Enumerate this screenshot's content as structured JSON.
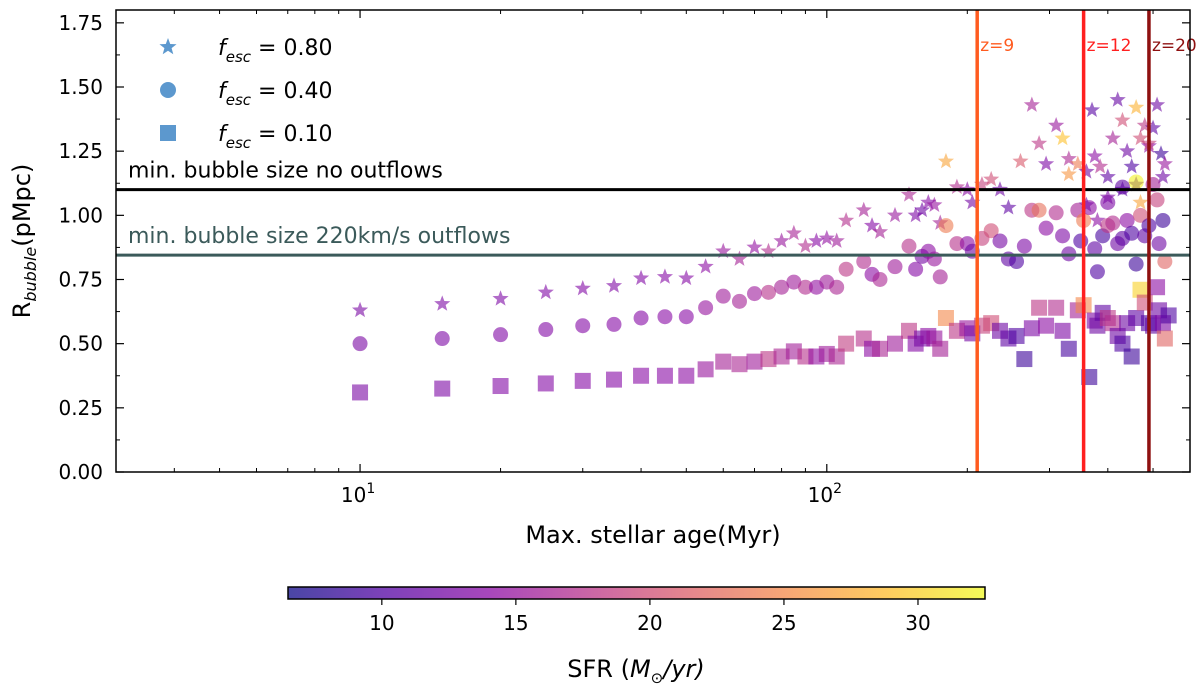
{
  "chart_data": {
    "type": "scatter",
    "xscale": "log",
    "xlim": [
      3.0,
      600.0
    ],
    "ylim": [
      0.0,
      1.8
    ],
    "xlabel": "Max. stellar age(Myr)",
    "ylabel": "R_bubble(pMpc)",
    "ylabel_base": "R",
    "ylabel_sub": "bubble",
    "ylabel_tail": "(pMpc)",
    "x_ticks": [
      {
        "value": 10,
        "base": "10",
        "exp": "1"
      },
      {
        "value": 100,
        "base": "10",
        "exp": "2"
      }
    ],
    "y_ticks": [
      {
        "value": 0.0,
        "label": "0.00"
      },
      {
        "value": 0.25,
        "label": "0.25"
      },
      {
        "value": 0.5,
        "label": "0.50"
      },
      {
        "value": 0.75,
        "label": "0.75"
      },
      {
        "value": 1.0,
        "label": "1.00"
      },
      {
        "value": 1.25,
        "label": "1.25"
      },
      {
        "value": 1.5,
        "label": "1.50"
      },
      {
        "value": 1.75,
        "label": "1.75"
      }
    ],
    "legend": [
      {
        "marker": "star",
        "prefix": "f",
        "sub": "esc",
        "value_text": " = 0.80"
      },
      {
        "marker": "circle",
        "prefix": "f",
        "sub": "esc",
        "value_text": " = 0.40"
      },
      {
        "marker": "square",
        "prefix": "f",
        "sub": "esc",
        "value_text": " = 0.10"
      }
    ],
    "legend_position": "top-left",
    "legend_color": "#3f86c6",
    "hlines": [
      {
        "y": 1.1,
        "color": "#000000",
        "label": "min. bubble size no outflows"
      },
      {
        "y": 0.845,
        "color": "#3b5a5a",
        "label": "min. bubble size 220km/s outflows"
      }
    ],
    "vlines": [
      {
        "x": 210,
        "color": "#ff5b1f",
        "label": "z=9"
      },
      {
        "x": 355,
        "color": "#ff2020",
        "label": "z=12"
      },
      {
        "x": 490,
        "color": "#8e1010",
        "label": "z=20"
      }
    ],
    "colorbar": {
      "label_prefix": "SFR (",
      "label_unit": "M",
      "label_sub": "⊙",
      "label_suffix": "/yr)",
      "min": 6.5,
      "max": 32.5,
      "ticks": [
        {
          "value": 10,
          "label": "10"
        },
        {
          "value": 15,
          "label": "15"
        },
        {
          "value": 20,
          "label": "20"
        },
        {
          "value": 25,
          "label": "25"
        },
        {
          "value": 30,
          "label": "30"
        }
      ]
    },
    "series": [
      {
        "name": "f_esc = 0.80",
        "marker": "star",
        "points": [
          [
            10,
            0.63,
            12.8
          ],
          [
            15,
            0.655,
            13
          ],
          [
            20,
            0.675,
            13
          ],
          [
            25,
            0.7,
            13.2
          ],
          [
            30,
            0.715,
            13.3
          ],
          [
            35,
            0.725,
            13.2
          ],
          [
            40,
            0.755,
            13.3
          ],
          [
            45,
            0.76,
            13.5
          ],
          [
            50,
            0.755,
            13.6
          ],
          [
            55,
            0.8,
            14
          ],
          [
            60,
            0.86,
            15
          ],
          [
            65,
            0.83,
            16
          ],
          [
            70,
            0.875,
            14.5
          ],
          [
            75,
            0.86,
            17
          ],
          [
            80,
            0.9,
            15
          ],
          [
            85,
            0.93,
            16.2
          ],
          [
            90,
            0.88,
            17
          ],
          [
            95,
            0.9,
            13.8
          ],
          [
            100,
            0.91,
            14.5
          ],
          [
            105,
            0.9,
            15.5
          ],
          [
            110,
            0.98,
            17.2
          ],
          [
            120,
            1.02,
            16
          ],
          [
            125,
            0.96,
            13.5
          ],
          [
            130,
            0.935,
            16
          ],
          [
            140,
            1.0,
            15
          ],
          [
            150,
            1.08,
            16.5
          ],
          [
            155,
            1.0,
            13
          ],
          [
            160,
            1.02,
            12
          ],
          [
            165,
            1.05,
            13.5
          ],
          [
            170,
            1.04,
            14.8
          ],
          [
            175,
            0.97,
            16
          ],
          [
            180,
            1.21,
            27
          ],
          [
            190,
            1.11,
            17
          ],
          [
            200,
            1.1,
            14
          ],
          [
            205,
            1.05,
            12.5
          ],
          [
            215,
            1.12,
            19
          ],
          [
            225,
            1.14,
            20
          ],
          [
            235,
            1.1,
            12
          ],
          [
            245,
            1.03,
            11
          ],
          [
            260,
            1.21,
            21
          ],
          [
            275,
            1.43,
            16
          ],
          [
            285,
            1.28,
            18
          ],
          [
            295,
            1.2,
            13
          ],
          [
            310,
            1.35,
            15
          ],
          [
            320,
            1.3,
            29
          ],
          [
            330,
            1.22,
            16.5
          ],
          [
            345,
            1.2,
            24
          ],
          [
            360,
            1.17,
            12
          ],
          [
            370,
            1.41,
            10.5
          ],
          [
            375,
            1.23,
            14
          ],
          [
            385,
            1.19,
            17
          ],
          [
            400,
            1.15,
            11
          ],
          [
            410,
            1.3,
            16
          ],
          [
            420,
            1.45,
            11.5
          ],
          [
            430,
            1.37,
            20
          ],
          [
            440,
            1.25,
            12
          ],
          [
            450,
            1.19,
            10
          ],
          [
            460,
            1.42,
            28
          ],
          [
            470,
            1.3,
            20
          ],
          [
            480,
            1.35,
            18
          ],
          [
            490,
            1.27,
            14
          ],
          [
            500,
            1.34,
            11
          ],
          [
            510,
            1.43,
            12
          ],
          [
            520,
            1.24,
            9
          ],
          [
            525,
            1.15,
            12
          ],
          [
            530,
            1.2,
            15
          ],
          [
            400,
            1.07,
            13
          ],
          [
            430,
            1.1,
            11
          ],
          [
            460,
            1.12,
            10
          ],
          [
            470,
            1.05,
            27
          ],
          [
            490,
            1.28,
            19
          ],
          [
            380,
            0.98,
            14
          ],
          [
            360,
            1.04,
            12
          ],
          [
            330,
            1.16,
            26
          ]
        ]
      },
      {
        "name": "f_esc = 0.40",
        "marker": "circle",
        "points": [
          [
            10,
            0.5,
            12.8
          ],
          [
            15,
            0.52,
            13
          ],
          [
            20,
            0.535,
            13.2
          ],
          [
            25,
            0.555,
            13.3
          ],
          [
            30,
            0.57,
            13.4
          ],
          [
            35,
            0.575,
            13.5
          ],
          [
            40,
            0.6,
            13.6
          ],
          [
            45,
            0.605,
            13.7
          ],
          [
            50,
            0.605,
            13.8
          ],
          [
            55,
            0.64,
            14.8
          ],
          [
            60,
            0.685,
            15.5
          ],
          [
            65,
            0.665,
            16
          ],
          [
            70,
            0.695,
            15.3
          ],
          [
            75,
            0.7,
            17.5
          ],
          [
            80,
            0.72,
            16
          ],
          [
            85,
            0.74,
            15.5
          ],
          [
            90,
            0.72,
            17
          ],
          [
            95,
            0.72,
            14.5
          ],
          [
            100,
            0.74,
            15.5
          ],
          [
            105,
            0.72,
            16.5
          ],
          [
            110,
            0.79,
            18
          ],
          [
            120,
            0.82,
            17
          ],
          [
            125,
            0.77,
            14
          ],
          [
            130,
            0.75,
            16.5
          ],
          [
            140,
            0.8,
            15.5
          ],
          [
            150,
            0.88,
            17.5
          ],
          [
            155,
            0.79,
            13.5
          ],
          [
            160,
            0.84,
            12.5
          ],
          [
            165,
            0.86,
            14
          ],
          [
            170,
            0.83,
            15
          ],
          [
            175,
            0.76,
            16
          ],
          [
            180,
            0.96,
            24
          ],
          [
            190,
            0.89,
            17.5
          ],
          [
            200,
            0.89,
            14
          ],
          [
            205,
            0.86,
            12
          ],
          [
            215,
            0.91,
            19
          ],
          [
            225,
            0.94,
            20
          ],
          [
            235,
            0.9,
            12.5
          ],
          [
            245,
            0.83,
            11
          ],
          [
            255,
            0.82,
            10
          ],
          [
            265,
            0.88,
            13
          ],
          [
            275,
            1.02,
            18
          ],
          [
            285,
            1.02,
            23
          ],
          [
            295,
            0.95,
            14
          ],
          [
            310,
            1.01,
            17
          ],
          [
            320,
            0.92,
            13
          ],
          [
            330,
            0.85,
            12
          ],
          [
            345,
            1.02,
            16
          ],
          [
            355,
            0.98,
            24
          ],
          [
            365,
            1.03,
            14
          ],
          [
            375,
            0.87,
            11
          ],
          [
            380,
            0.78,
            10
          ],
          [
            390,
            0.92,
            9.5
          ],
          [
            400,
            0.96,
            18
          ],
          [
            410,
            0.97,
            17
          ],
          [
            420,
            0.89,
            12
          ],
          [
            430,
            0.91,
            11
          ],
          [
            440,
            0.98,
            14
          ],
          [
            450,
            0.93,
            10
          ],
          [
            460,
            1.13,
            32
          ],
          [
            470,
            1.0,
            20
          ],
          [
            480,
            0.92,
            11
          ],
          [
            490,
            0.96,
            10
          ],
          [
            500,
            1.12,
            16
          ],
          [
            510,
            1.06,
            19
          ],
          [
            515,
            0.89,
            12
          ],
          [
            525,
            0.98,
            9
          ],
          [
            530,
            0.82,
            22
          ],
          [
            400,
            1.05,
            13
          ],
          [
            430,
            1.11,
            11
          ],
          [
            460,
            0.81,
            9
          ],
          [
            350,
            0.9,
            10
          ]
        ]
      },
      {
        "name": "f_esc = 0.10",
        "marker": "square",
        "points": [
          [
            10,
            0.31,
            12.8
          ],
          [
            15,
            0.325,
            13
          ],
          [
            20,
            0.335,
            13.3
          ],
          [
            25,
            0.345,
            13.4
          ],
          [
            30,
            0.355,
            13.5
          ],
          [
            35,
            0.36,
            13.6
          ],
          [
            40,
            0.375,
            13.8
          ],
          [
            45,
            0.375,
            13.8
          ],
          [
            50,
            0.375,
            14
          ],
          [
            55,
            0.4,
            15
          ],
          [
            60,
            0.43,
            16
          ],
          [
            65,
            0.42,
            16.5
          ],
          [
            70,
            0.43,
            15.5
          ],
          [
            75,
            0.44,
            18
          ],
          [
            80,
            0.45,
            16.5
          ],
          [
            85,
            0.47,
            15.8
          ],
          [
            90,
            0.45,
            17.5
          ],
          [
            95,
            0.45,
            14.5
          ],
          [
            100,
            0.46,
            15.5
          ],
          [
            105,
            0.45,
            16.5
          ],
          [
            110,
            0.5,
            18.5
          ],
          [
            120,
            0.52,
            17.5
          ],
          [
            125,
            0.48,
            14
          ],
          [
            130,
            0.48,
            16.5
          ],
          [
            140,
            0.5,
            15.5
          ],
          [
            150,
            0.55,
            18
          ],
          [
            155,
            0.5,
            13.5
          ],
          [
            160,
            0.52,
            12.5
          ],
          [
            165,
            0.53,
            14
          ],
          [
            170,
            0.52,
            15
          ],
          [
            175,
            0.48,
            16
          ],
          [
            180,
            0.6,
            25
          ],
          [
            190,
            0.55,
            18
          ],
          [
            200,
            0.56,
            15
          ],
          [
            205,
            0.54,
            12.5
          ],
          [
            215,
            0.57,
            19
          ],
          [
            225,
            0.58,
            20
          ],
          [
            235,
            0.55,
            12
          ],
          [
            245,
            0.52,
            11
          ],
          [
            255,
            0.53,
            10
          ],
          [
            265,
            0.44,
            9
          ],
          [
            275,
            0.56,
            13
          ],
          [
            285,
            0.64,
            18
          ],
          [
            295,
            0.57,
            14
          ],
          [
            310,
            0.64,
            17
          ],
          [
            320,
            0.55,
            13
          ],
          [
            330,
            0.48,
            9.5
          ],
          [
            345,
            0.63,
            16
          ],
          [
            355,
            0.65,
            25
          ],
          [
            365,
            0.37,
            9
          ],
          [
            375,
            0.59,
            13
          ],
          [
            380,
            0.57,
            12
          ],
          [
            390,
            0.62,
            11
          ],
          [
            400,
            0.6,
            18
          ],
          [
            410,
            0.58,
            17
          ],
          [
            420,
            0.53,
            12
          ],
          [
            430,
            0.5,
            10
          ],
          [
            440,
            0.58,
            12
          ],
          [
            450,
            0.45,
            9
          ],
          [
            460,
            0.6,
            11
          ],
          [
            470,
            0.71,
            30
          ],
          [
            480,
            0.66,
            20
          ],
          [
            490,
            0.58,
            10
          ],
          [
            500,
            0.57,
            11
          ],
          [
            510,
            0.72,
            14
          ],
          [
            515,
            0.63,
            12
          ],
          [
            525,
            0.58,
            13
          ],
          [
            530,
            0.52,
            22
          ],
          [
            540,
            0.61,
            10
          ]
        ]
      }
    ]
  }
}
